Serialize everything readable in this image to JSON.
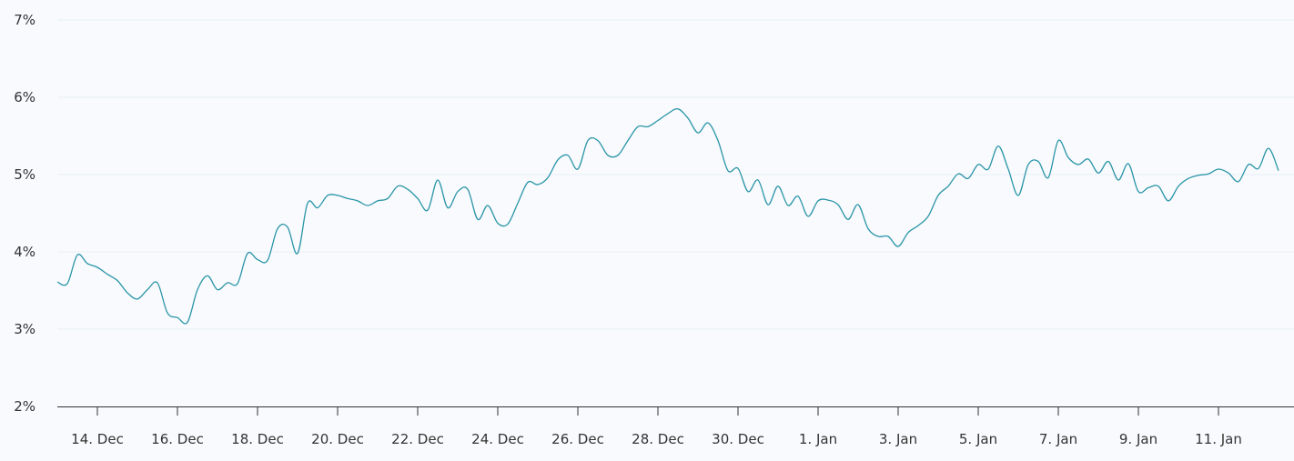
{
  "chart_data": {
    "type": "line",
    "title": "",
    "xlabel": "",
    "ylabel": "",
    "ylim": [
      2,
      7
    ],
    "y_ticks": [
      {
        "value": 2,
        "label": "2%"
      },
      {
        "value": 3,
        "label": "3%"
      },
      {
        "value": 4,
        "label": "4%"
      },
      {
        "value": 5,
        "label": "5%"
      },
      {
        "value": 6,
        "label": "6%"
      },
      {
        "value": 7,
        "label": "7%"
      }
    ],
    "x_ticks": [
      {
        "x": "14 Dec 00:00",
        "label": "14. Dec"
      },
      {
        "x": "16 Dec 00:00",
        "label": "16. Dec"
      },
      {
        "x": "18 Dec 00:00",
        "label": "18. Dec"
      },
      {
        "x": "20 Dec 00:00",
        "label": "20. Dec"
      },
      {
        "x": "22 Dec 00:00",
        "label": "22. Dec"
      },
      {
        "x": "24 Dec 00:00",
        "label": "24. Dec"
      },
      {
        "x": "26 Dec 00:00",
        "label": "26. Dec"
      },
      {
        "x": "28 Dec 00:00",
        "label": "28. Dec"
      },
      {
        "x": "30 Dec 00:00",
        "label": "30. Dec"
      },
      {
        "x": "1 Jan 00:00",
        "label": "1. Jan"
      },
      {
        "x": "3 Jan 00:00",
        "label": "3. Jan"
      },
      {
        "x": "5 Jan 00:00",
        "label": "5. Jan"
      },
      {
        "x": "7 Jan 00:00",
        "label": "7. Jan"
      },
      {
        "x": "9 Jan 00:00",
        "label": "9. Jan"
      },
      {
        "x": "11 Jan 00:00",
        "label": "11. Jan"
      }
    ],
    "grid": true,
    "legend": "none",
    "colors": {
      "line": "#2a95a7",
      "grid": "#e9f0f8",
      "axis": "#333333",
      "background": "#f8fafd"
    },
    "x": [
      "13 Dec 00:00",
      "13 Dec 06:00",
      "13 Dec 12:00",
      "13 Dec 18:00",
      "14 Dec 00:00",
      "14 Dec 06:00",
      "14 Dec 12:00",
      "14 Dec 18:00",
      "15 Dec 00:00",
      "15 Dec 06:00",
      "15 Dec 12:00",
      "15 Dec 18:00",
      "16 Dec 00:00",
      "16 Dec 06:00",
      "16 Dec 12:00",
      "16 Dec 18:00",
      "17 Dec 00:00",
      "17 Dec 06:00",
      "17 Dec 12:00",
      "17 Dec 18:00",
      "18 Dec 00:00",
      "18 Dec 06:00",
      "18 Dec 12:00",
      "18 Dec 18:00",
      "19 Dec 00:00",
      "19 Dec 06:00",
      "19 Dec 12:00",
      "19 Dec 18:00",
      "20 Dec 00:00",
      "20 Dec 06:00",
      "20 Dec 12:00",
      "20 Dec 18:00",
      "21 Dec 00:00",
      "21 Dec 06:00",
      "21 Dec 12:00",
      "21 Dec 18:00",
      "22 Dec 00:00",
      "22 Dec 06:00",
      "22 Dec 12:00",
      "22 Dec 18:00",
      "23 Dec 00:00",
      "23 Dec 06:00",
      "23 Dec 12:00",
      "23 Dec 18:00",
      "24 Dec 00:00",
      "24 Dec 06:00",
      "24 Dec 12:00",
      "24 Dec 18:00",
      "25 Dec 00:00",
      "25 Dec 06:00",
      "25 Dec 12:00",
      "25 Dec 18:00",
      "26 Dec 00:00",
      "26 Dec 06:00",
      "26 Dec 12:00",
      "26 Dec 18:00",
      "27 Dec 00:00",
      "27 Dec 06:00",
      "27 Dec 12:00",
      "27 Dec 18:00",
      "28 Dec 00:00",
      "28 Dec 06:00",
      "28 Dec 12:00",
      "28 Dec 18:00",
      "29 Dec 00:00",
      "29 Dec 06:00",
      "29 Dec 12:00",
      "29 Dec 18:00",
      "30 Dec 00:00",
      "30 Dec 06:00",
      "30 Dec 12:00",
      "30 Dec 18:00",
      "31 Dec 00:00",
      "31 Dec 06:00",
      "31 Dec 12:00",
      "31 Dec 18:00",
      "1 Jan 00:00",
      "1 Jan 06:00",
      "1 Jan 12:00",
      "1 Jan 18:00",
      "2 Jan 00:00",
      "2 Jan 06:00",
      "2 Jan 12:00",
      "2 Jan 18:00",
      "3 Jan 00:00",
      "3 Jan 06:00",
      "3 Jan 12:00",
      "3 Jan 18:00",
      "4 Jan 00:00",
      "4 Jan 06:00",
      "4 Jan 12:00",
      "4 Jan 18:00",
      "5 Jan 00:00",
      "5 Jan 06:00",
      "5 Jan 12:00",
      "5 Jan 18:00",
      "6 Jan 00:00",
      "6 Jan 06:00",
      "6 Jan 12:00",
      "6 Jan 18:00",
      "7 Jan 00:00",
      "7 Jan 06:00",
      "7 Jan 12:00",
      "7 Jan 18:00",
      "8 Jan 00:00",
      "8 Jan 06:00",
      "8 Jan 12:00",
      "8 Jan 18:00",
      "9 Jan 00:00",
      "9 Jan 06:00",
      "9 Jan 12:00",
      "9 Jan 18:00",
      "10 Jan 00:00",
      "10 Jan 06:00",
      "10 Jan 12:00",
      "10 Jan 18:00",
      "11 Jan 00:00",
      "11 Jan 06:00",
      "11 Jan 12:00",
      "11 Jan 18:00",
      "12 Jan 00:00",
      "12 Jan 06:00",
      "12 Jan 12:00"
    ],
    "series": [
      {
        "values": [
          3.61,
          3.59,
          3.96,
          3.85,
          3.8,
          3.71,
          3.63,
          3.47,
          3.39,
          3.51,
          3.6,
          3.21,
          3.15,
          3.09,
          3.51,
          3.69,
          3.51,
          3.6,
          3.59,
          3.98,
          3.9,
          3.89,
          4.3,
          4.32,
          3.98,
          4.63,
          4.57,
          4.73,
          4.73,
          4.69,
          4.66,
          4.6,
          4.66,
          4.69,
          4.85,
          4.81,
          4.69,
          4.54,
          4.93,
          4.57,
          4.78,
          4.81,
          4.42,
          4.6,
          4.37,
          4.36,
          4.63,
          4.9,
          4.87,
          4.96,
          5.19,
          5.25,
          5.07,
          5.44,
          5.44,
          5.25,
          5.25,
          5.44,
          5.62,
          5.62,
          5.7,
          5.79,
          5.85,
          5.73,
          5.54,
          5.67,
          5.44,
          5.05,
          5.08,
          4.78,
          4.93,
          4.61,
          4.85,
          4.6,
          4.72,
          4.46,
          4.66,
          4.67,
          4.61,
          4.42,
          4.61,
          4.3,
          4.2,
          4.2,
          4.07,
          4.25,
          4.34,
          4.46,
          4.73,
          4.85,
          5.01,
          4.95,
          5.13,
          5.07,
          5.37,
          5.07,
          4.73,
          5.13,
          5.17,
          4.96,
          5.44,
          5.22,
          5.13,
          5.2,
          5.02,
          5.17,
          4.93,
          5.14,
          4.78,
          4.83,
          4.85,
          4.66,
          4.85,
          4.95,
          4.99,
          5.01,
          5.07,
          5.02,
          4.91,
          5.13,
          5.08,
          5.34,
          5.05
        ]
      }
    ]
  }
}
